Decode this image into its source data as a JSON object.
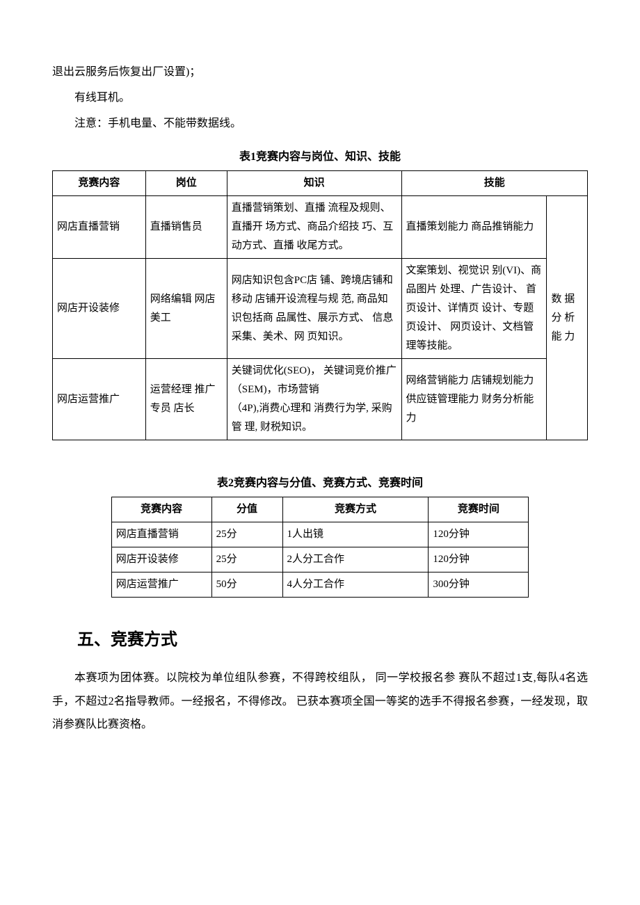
{
  "paragraphs": {
    "p1": "退出云服务后恢复出厂设置)；",
    "p2": "有线耳机。",
    "p3": "注意：手机电量、不能带数据线。"
  },
  "table1": {
    "caption": "表1竞赛内容与岗位、知识、技能",
    "headers": [
      "竞赛内容",
      "岗位",
      "知识",
      "技能"
    ],
    "merged_skill": "数 据 分 析 能 力",
    "rows": [
      {
        "content": "网店直播营销",
        "post": "直播销售员",
        "knowledge": "直播营销策划、直播 流程及规则、直播开 场方式、商品介绍技 巧、互动方式、直播 收尾方式。",
        "skill": "直播策划能力 商品推销能力"
      },
      {
        "content": "网店开设装修",
        "post": "网络编辑 网店美工",
        "knowledge": "网店知识包含PC店 铺、跨境店铺和移动 店铺开设流程与规 范, 商品知识包括商 品属性、展示方式、 信息采集、美术、网 页知识。",
        "skill": "文案策划、视觉识 别(VI)、商品图片 处理、广告设计、 首页设计、详情页 设计、专题页设计、 网页设计、文档管 理等技能。"
      },
      {
        "content": "网店运营推广",
        "post": "运营经理 推广专员 店长",
        "knowledge": "关键词优化(SEO)， 关键词竞价推广\n （SEM)，市场营销\n （4P),消费心理和 消费行为学, 采购管 理, 财税知识。",
        "skill": "网络营销能力 店铺规划能力 供应链管理能力 财务分析能力"
      }
    ]
  },
  "table2": {
    "caption": "表2竞赛内容与分值、竞赛方式、竞赛时间",
    "headers": [
      "竞赛内容",
      "分值",
      "竞赛方式",
      "竞赛时间"
    ],
    "rows": [
      {
        "content": "网店直播营销",
        "score": "25分",
        "mode": "1人出镜",
        "time": "120分钟"
      },
      {
        "content": "网店开设装修",
        "score": "25分",
        "mode": "2人分工合作",
        "time": "120分钟"
      },
      {
        "content": "网店运营推广",
        "score": "50分",
        "mode": "4人分工合作",
        "time": "300分钟"
      }
    ]
  },
  "section": {
    "heading": "五、竞赛方式",
    "body": "本赛项为团体赛。以院校为单位组队参赛，不得跨校组队， 同一学校报名参 赛队不超过1支,每队4名选手，不超过2名指导教师。一经报名，不得修改。 已获本赛项全国一等奖的选手不得报名参赛，一经发现，取消参赛队比赛资格。"
  },
  "colors": {
    "text": "#000000",
    "background": "#ffffff",
    "border": "#000000"
  }
}
